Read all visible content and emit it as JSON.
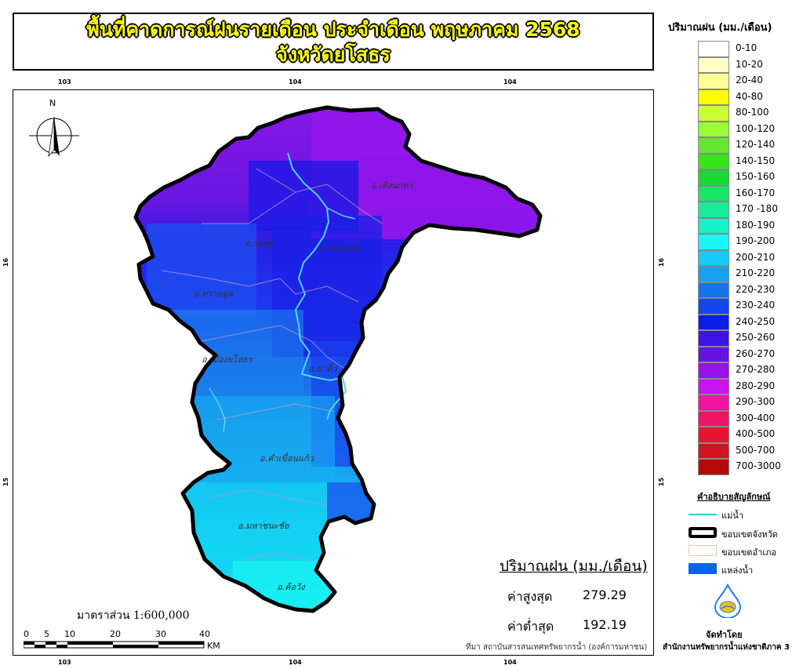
{
  "title": {
    "line1": "พื้นที่คาดการณ์ฝนรายเดือน ประจำเดือน พฤษภาคม 2568",
    "line2": "จังหวัดยโสธร"
  },
  "grid_ticks": {
    "top": [
      "103",
      "104",
      "104"
    ],
    "bottom": [
      "103",
      "104",
      "104"
    ],
    "left": [
      "16",
      "15"
    ],
    "right": [
      "16",
      "15"
    ]
  },
  "north_arrow_label": "N",
  "districts": [
    {
      "id": "loeng-nok-tha",
      "label": "อ.เลิงนกทา"
    },
    {
      "id": "kut-chum",
      "label": "อ.กุดชุม"
    },
    {
      "id": "thai-charoen",
      "label": "อ.ไทยเจริญ"
    },
    {
      "id": "sai-mun",
      "label": "อ.ทรายมูล"
    },
    {
      "id": "mueang-yasothon",
      "label": "อ.เมืองยโสธร"
    },
    {
      "id": "pa-tio",
      "label": "อ.ป่าติ้ว"
    },
    {
      "id": "kham-khuean-kaeo",
      "label": "อ.คำเขื่อนแก้ว"
    },
    {
      "id": "maha-chana-chai",
      "label": "อ.มหาชนะชัย"
    },
    {
      "id": "kho-wang",
      "label": "อ.ค้อวัง"
    }
  ],
  "legend": {
    "title": "ปริมาณฝน (มม./เดือน)",
    "items": [
      {
        "label": "0-10",
        "color": "#ffffff"
      },
      {
        "label": "10-20",
        "color": "#ffffc8"
      },
      {
        "label": "20-40",
        "color": "#ffff96"
      },
      {
        "label": "40-80",
        "color": "#ffff00"
      },
      {
        "label": "80-100",
        "color": "#ccff33"
      },
      {
        "label": "100-120",
        "color": "#99ff33"
      },
      {
        "label": "120-140",
        "color": "#66e633"
      },
      {
        "label": "140-150",
        "color": "#33e61a"
      },
      {
        "label": "150-160",
        "color": "#1ad933"
      },
      {
        "label": "160-170",
        "color": "#1ae666"
      },
      {
        "label": "170 -180",
        "color": "#1aeb99"
      },
      {
        "label": "180-190",
        "color": "#1af0c8"
      },
      {
        "label": "190-200",
        "color": "#1af5f5"
      },
      {
        "label": "200-210",
        "color": "#14ccf5"
      },
      {
        "label": "210-220",
        "color": "#1aa0f0"
      },
      {
        "label": "220-230",
        "color": "#1473eb"
      },
      {
        "label": "230-240",
        "color": "#1446f0"
      },
      {
        "label": "240-250",
        "color": "#0a1ee6"
      },
      {
        "label": "250-260",
        "color": "#3c14e6"
      },
      {
        "label": "260-270",
        "color": "#6414e1"
      },
      {
        "label": "270-280",
        "color": "#9614eb"
      },
      {
        "label": "280-290",
        "color": "#c814f0"
      },
      {
        "label": "290-300",
        "color": "#f014a0"
      },
      {
        "label": "300-400",
        "color": "#f01464"
      },
      {
        "label": "400-500",
        "color": "#e61432"
      },
      {
        "label": "500-700",
        "color": "#d2141e"
      },
      {
        "label": "700-3000",
        "color": "#b40a0a"
      }
    ]
  },
  "symbols": {
    "title": "คำอธิบายสัญลักษณ์",
    "items": [
      {
        "label": "แม่น้ำ",
        "kind": "river",
        "color": "#33cccc"
      },
      {
        "label": "ขอบเขตจังหวัด",
        "kind": "province-boundary",
        "color": "#000000"
      },
      {
        "label": "ขอบเขตอำเภอ",
        "kind": "district-boundary",
        "color": "#f0c8b4"
      },
      {
        "label": "แหล่งน้ำ",
        "kind": "water-body",
        "color": "#0064e6"
      }
    ]
  },
  "stats": {
    "title": "ปริมาณฝน (มม./เดือน)",
    "max_label": "ค่าสูงสุด",
    "max_value": "279.29",
    "min_label": "ค่าต่ำสุด",
    "min_value": "192.19"
  },
  "scale": {
    "text": "มาตราส่วน 1:600,000",
    "ticks": [
      "0",
      "5",
      "10",
      "20",
      "30",
      "40"
    ],
    "unit": "KM"
  },
  "source": "ที่มา  สถาบันสารสนเทศทรัพยากรน้ำ (องค์การมหาชน)",
  "made_by": "จัดทำโดย",
  "organization": "สำนักงานทรัพยากรน้ำแห่งชาติภาค 3"
}
